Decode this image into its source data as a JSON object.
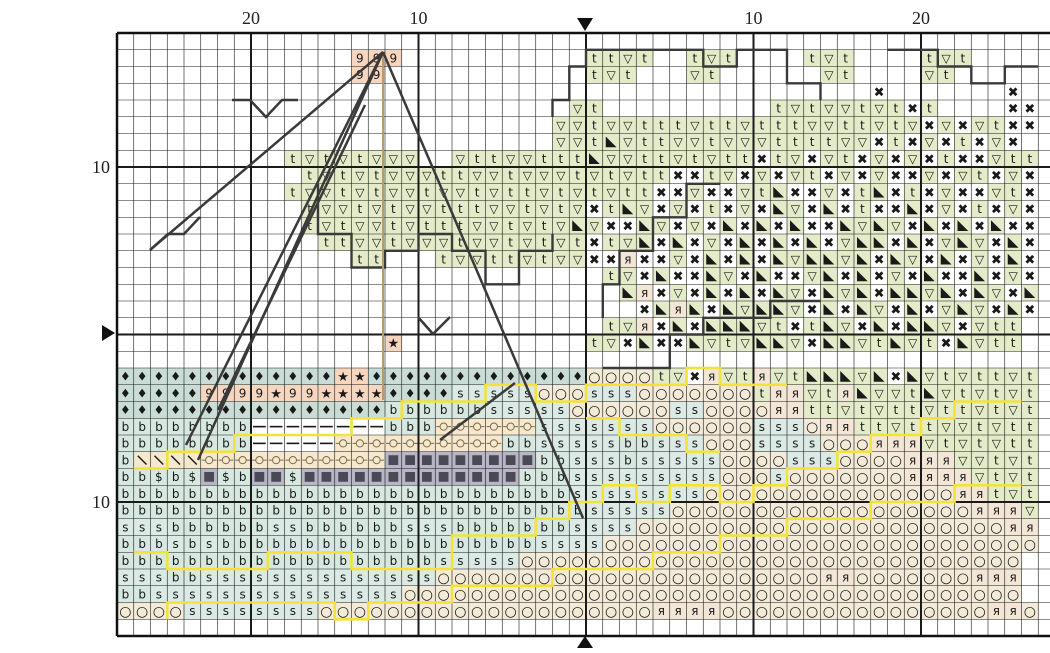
{
  "chart": {
    "title": "",
    "pattern_cols": 55,
    "pattern_rows": 35,
    "center_col": 28,
    "center_row": 18,
    "col_labels": [
      {
        "text": "20",
        "col": 8
      },
      {
        "text": "10",
        "col": 18
      },
      {
        "text": "10",
        "col": 38
      },
      {
        "text": "20",
        "col": 48
      }
    ],
    "row_labels": [
      {
        "text": "10",
        "row": 8
      },
      {
        "text": "10",
        "row": 28
      }
    ]
  },
  "legend": {
    "t": {
      "glyph": "t",
      "color": "#e3ebc8"
    },
    "v": {
      "glyph": "▽",
      "color": "#e3ebc8"
    },
    "x": {
      "glyph": "✖",
      "color": "#ffffff"
    },
    "k": {
      "glyph": "◣",
      "color": "#e3ebc8"
    },
    "r": {
      "glyph": "я",
      "color": "#f3e6d6"
    },
    "s": {
      "glyph": "s",
      "color": "#dbeae4"
    },
    "o": {
      "glyph": "○",
      "color": "#f3ead8"
    },
    "b": {
      "glyph": "b",
      "color": "#d7e8e1"
    },
    "d": {
      "glyph": "♦",
      "color": "#c9ddd6"
    },
    "n": {
      "glyph": "9",
      "color": "#f7d6bf"
    },
    "a": {
      "glyph": "★",
      "color": "#f7d6bf"
    },
    "h": {
      "glyph": "—",
      "color": "#ffffff"
    },
    "c": {
      "glyph": "-o-",
      "color": "#f6e8cc"
    },
    "l": {
      "glyph": "\\",
      "color": "#f6e8cc"
    },
    "g": {
      "glyph": "◪",
      "color": "#b8b5c6"
    },
    "$": {
      "glyph": "$",
      "color": "#d7e8e1"
    }
  },
  "grid": [
    ".......................................................",
    "..............nnn...........ttvt..tvt....tvt....tvt....",
    "..............nn............tvt...vt......vt....vt.....",
    ".............................................x.......x.",
    "...........................vt..........tvtvvtvtxt....xx",
    "..........................vvtvvtttvttvtttvvttvtvxvxvtxx",
    "..........................vvtkvttvvtvvvttttvvxtxvxtxvx.",
    "..........tvtvtvvv..vttvvtttkvvttvtvttxtvxvtxvxvxtxxvtt",
    "...........tvtvtvvvttvvtvvvtvtvttxxtvxvxvtxvxvxxvxvtxvx",
    "..........tvvtvtvvtvvtvttvtvtvttxxvxxvtkxxvxtkxtxvxxvtx",
    "...........tvvtvtvvtttvvtvtvxtkvxvxtxvxkvxkxtxxkxvxtxvx",
    "...........tvtvvtvtttvvtvtvkvxxkvxvxkxkxkxxkvkvxkxkxkxx",
    "............ttvvtvvvtvvtvtvtxtvkxkxvxkxkxkxvkkxkxvkvxkx",
    "..............tt...tvvttvtvvxxrxxvxkxkxkvkkvkxkvxkxvxkx",
    ".............................tvxkxxkvxkxxvkxkxvxkxxkxvx",
    "..............................krxvxkxkxkvxkvkxkkvkxkvxk",
    "...............................xkrkxkvkkvxkxkvxkxvkvxkx",
    ".............................tvrxkxkkkvtxtkvxkxkkvxvtt.",
    "................a...........tvxkxxkvtvkkvxkkvtkvtxkvtt.",
    ".......................................................",
    "dddddddddddddaadddddddddddddooootvxrvtrvtkkkvkxkvtvttvt",
    "dddddnnnnannaaaaddddsssssooosssoooooootrrvtrkvvtkvtvtvt",
    "ddddddddddddddddbbbbbbsssssoooooossoooorrttvtvttvttvtvt",
    "bbbbbbbbhhhhhhhhbbbccccccsssssssoooooosssorrttvttvvtvtt",
    "bbbbbbbbhhhhhccccccccccbbsssssbbsssooossssooorrrvtvtvtt",
    "bllllcccccccccccgggggggggbbsssbsssssoooosssoooorrrvvtvt",
    "bb$b$g$bgg$gggggggggggggbbbsssssssssooosooooooorrrrvtvt",
    "bbbbbbbbbbbbbbbbbbbbbbbbbbbssssssssooooooooooooooorrtvt",
    "bbbbbbbbbbbbbbbbbbbbbbbbbbbbsssssoooooooooooooooooorrrv",
    "sssbbbbbbssbbbbbbsssbbbbbbbssssoooooooooooooooooooooorr",
    "bbbsbsbbbbbbbbbbbbbbbbbbbssssoooooooooooooooooooooooooo",
    "bbbbbbbbbbbbbbbbbbbsssssoooooooooooooooooooooooooooooo.",
    "sssbbssssssssssssssooooooooooooooooooooooorrooooooorrr.",
    "bbsssssssssssssssooooooooooooooooooooooooooooooooooooo.",
    "oooossssssssoooooooooooooooooooorrrroooooooooooooooorro"
  ],
  "outlines": {
    "yellow": [
      [
        [
          1,
          31
        ],
        [
          3,
          31
        ],
        [
          3,
          32
        ],
        [
          9,
          32
        ],
        [
          9,
          31
        ],
        [
          14,
          31
        ],
        [
          14,
          32
        ],
        [
          20,
          32
        ],
        [
          20,
          30
        ],
        [
          25,
          30
        ],
        [
          25,
          29
        ],
        [
          27,
          29
        ],
        [
          27,
          28
        ],
        [
          29,
          28
        ],
        [
          29,
          27
        ],
        [
          31,
          27
        ],
        [
          31,
          28
        ],
        [
          33,
          28
        ],
        [
          33,
          27
        ],
        [
          36,
          27
        ],
        [
          36,
          28
        ],
        [
          38,
          28
        ],
        [
          38,
          27
        ],
        [
          40,
          27
        ],
        [
          40,
          26
        ],
        [
          43,
          26
        ],
        [
          43,
          25
        ],
        [
          45,
          25
        ],
        [
          45,
          24
        ],
        [
          48,
          24
        ],
        [
          48,
          23
        ],
        [
          50,
          23
        ],
        [
          50,
          22
        ],
        [
          54,
          22
        ]
      ],
      [
        [
          3,
          35
        ],
        [
          3,
          34
        ],
        [
          13,
          34
        ],
        [
          13,
          35
        ],
        [
          15,
          35
        ],
        [
          15,
          34
        ],
        [
          20,
          34
        ],
        [
          20,
          33
        ],
        [
          26,
          33
        ],
        [
          26,
          32
        ],
        [
          32,
          32
        ],
        [
          32,
          31
        ],
        [
          36,
          31
        ],
        [
          36,
          30
        ],
        [
          40,
          30
        ],
        [
          40,
          29
        ],
        [
          45,
          29
        ],
        [
          45,
          28
        ],
        [
          50,
          28
        ],
        [
          50,
          27
        ],
        [
          54,
          27
        ]
      ],
      [
        [
          1,
          26
        ],
        [
          3,
          26
        ],
        [
          3,
          25
        ],
        [
          7,
          25
        ],
        [
          7,
          24
        ],
        [
          14,
          24
        ],
        [
          14,
          23
        ],
        [
          17,
          23
        ],
        [
          17,
          22
        ],
        [
          22,
          22
        ],
        [
          22,
          21
        ],
        [
          25,
          21
        ],
        [
          25,
          22
        ],
        [
          28,
          22
        ],
        [
          28,
          21
        ],
        [
          34,
          21
        ],
        [
          34,
          20
        ],
        [
          36,
          20
        ],
        [
          36,
          21
        ],
        [
          40,
          21
        ]
      ],
      [
        [
          28,
          23
        ],
        [
          30,
          23
        ],
        [
          30,
          24
        ],
        [
          34,
          24
        ],
        [
          34,
          25
        ],
        [
          36,
          25
        ]
      ]
    ],
    "dark": [
      [
        [
          12,
          9
        ],
        [
          12,
          12
        ],
        [
          14,
          12
        ],
        [
          14,
          14
        ],
        [
          16,
          14
        ],
        [
          16,
          13
        ],
        [
          18,
          13
        ],
        [
          18,
          12
        ],
        [
          20,
          12
        ],
        [
          20,
          13
        ],
        [
          22,
          13
        ],
        [
          22,
          15
        ],
        [
          24,
          15
        ],
        [
          24,
          13
        ],
        [
          26,
          13
        ],
        [
          26,
          12
        ]
      ],
      [
        [
          26,
          5
        ],
        [
          26,
          4
        ],
        [
          27,
          4
        ],
        [
          27,
          2
        ],
        [
          28,
          2
        ],
        [
          28,
          1
        ],
        [
          35,
          1
        ],
        [
          35,
          2
        ],
        [
          37,
          2
        ],
        [
          37,
          1
        ],
        [
          40,
          1
        ],
        [
          40,
          3
        ],
        [
          42,
          3
        ],
        [
          42,
          4
        ]
      ],
      [
        [
          46,
          1
        ],
        [
          49,
          1
        ],
        [
          49,
          2
        ],
        [
          51,
          2
        ],
        [
          51,
          3
        ],
        [
          53,
          3
        ],
        [
          53,
          2
        ],
        [
          55,
          2
        ]
      ],
      [
        [
          29,
          17
        ],
        [
          29,
          15
        ],
        [
          30,
          15
        ],
        [
          30,
          13
        ],
        [
          32,
          13
        ],
        [
          32,
          11
        ],
        [
          34,
          11
        ],
        [
          34,
          9
        ],
        [
          36,
          9
        ]
      ],
      [
        [
          29,
          20
        ],
        [
          33,
          20
        ],
        [
          33,
          18
        ],
        [
          35,
          18
        ],
        [
          35,
          17
        ],
        [
          39,
          17
        ],
        [
          39,
          16
        ],
        [
          42,
          16
        ]
      ]
    ]
  }
}
